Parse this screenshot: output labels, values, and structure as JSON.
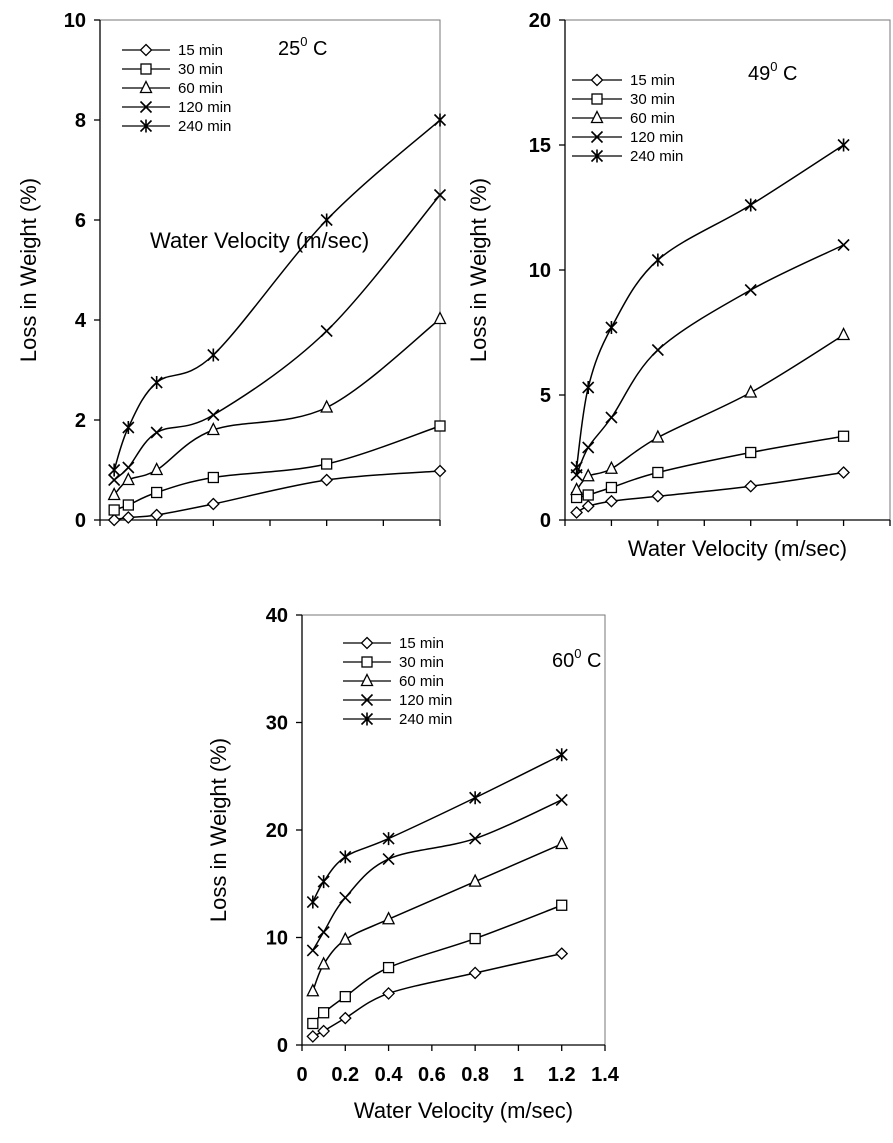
{
  "chart_data": [
    {
      "type": "line",
      "annotation": {
        "base": "25",
        "sup": "0",
        "unit": " C"
      },
      "ylabel": "Loss in Weight (%)",
      "inner_label": "Water Velocity (m/sec)",
      "xlabel": "",
      "xlim": [
        0,
        1.2
      ],
      "ylim": [
        0,
        10
      ],
      "yticks": [
        0,
        2,
        4,
        6,
        8,
        10
      ],
      "x_tick_labels_shown": false,
      "x": [
        0.05,
        0.1,
        0.2,
        0.4,
        0.8,
        1.2
      ],
      "series": [
        {
          "name": "15 min",
          "marker": "diamond",
          "values": [
            0.0,
            0.05,
            0.1,
            0.32,
            0.8,
            0.98
          ]
        },
        {
          "name": "30 min",
          "marker": "square",
          "values": [
            0.2,
            0.3,
            0.55,
            0.85,
            1.12,
            1.88
          ]
        },
        {
          "name": "60 min",
          "marker": "triangle",
          "values": [
            0.5,
            0.8,
            1.0,
            1.8,
            2.25,
            4.02
          ]
        },
        {
          "name": "120 min",
          "marker": "x",
          "values": [
            0.8,
            1.05,
            1.75,
            2.1,
            3.78,
            6.5
          ]
        },
        {
          "name": "240 min",
          "marker": "star",
          "values": [
            1.0,
            1.85,
            2.75,
            3.3,
            6.0,
            8.0
          ]
        }
      ]
    },
    {
      "type": "line",
      "annotation": {
        "base": "49",
        "sup": "0",
        "unit": " C"
      },
      "ylabel": "Loss in Weight (%)",
      "xlabel": "Water Velocity (m/sec)",
      "xlim": [
        0,
        1.4
      ],
      "ylim": [
        0,
        20
      ],
      "yticks": [
        0,
        5,
        10,
        15,
        20
      ],
      "x_tick_labels_shown": false,
      "x": [
        0.05,
        0.1,
        0.2,
        0.4,
        0.8,
        1.2
      ],
      "series": [
        {
          "name": "15 min",
          "marker": "diamond",
          "values": [
            0.3,
            0.55,
            0.75,
            0.95,
            1.35,
            1.9
          ]
        },
        {
          "name": "30 min",
          "marker": "square",
          "values": [
            0.9,
            1.0,
            1.3,
            1.9,
            2.7,
            3.35
          ]
        },
        {
          "name": "60 min",
          "marker": "triangle",
          "values": [
            1.2,
            1.75,
            2.05,
            3.3,
            5.1,
            7.4
          ]
        },
        {
          "name": "120 min",
          "marker": "x",
          "values": [
            1.8,
            2.9,
            4.1,
            6.8,
            9.2,
            11.0
          ]
        },
        {
          "name": "240 min",
          "marker": "star",
          "values": [
            2.1,
            5.3,
            7.7,
            10.4,
            12.6,
            15.0
          ]
        }
      ]
    },
    {
      "type": "line",
      "annotation": {
        "base": "60",
        "sup": "0",
        "unit": " C"
      },
      "ylabel": "Loss in Weight (%)",
      "xlabel": "Water Velocity (m/sec)",
      "xlim": [
        0,
        1.4
      ],
      "ylim": [
        0,
        40
      ],
      "yticks": [
        0,
        10,
        20,
        30,
        40
      ],
      "xticks": [
        0,
        0.2,
        0.4,
        0.6,
        0.8,
        1,
        1.2,
        1.4
      ],
      "xtick_labels": [
        "0",
        "0.2",
        "0.4",
        "0.6",
        "0.8",
        "1",
        "1.2",
        "1.4"
      ],
      "x_tick_labels_shown": true,
      "x": [
        0.05,
        0.1,
        0.2,
        0.4,
        0.8,
        1.2
      ],
      "series": [
        {
          "name": "15 min",
          "marker": "diamond",
          "values": [
            0.8,
            1.3,
            2.5,
            4.8,
            6.7,
            8.5
          ]
        },
        {
          "name": "30 min",
          "marker": "square",
          "values": [
            2.0,
            3.0,
            4.5,
            7.2,
            9.9,
            13.0
          ]
        },
        {
          "name": "60 min",
          "marker": "triangle",
          "values": [
            5.0,
            7.5,
            9.8,
            11.7,
            15.2,
            18.7
          ]
        },
        {
          "name": "120 min",
          "marker": "x",
          "values": [
            8.8,
            10.5,
            13.7,
            17.3,
            19.2,
            22.8
          ]
        },
        {
          "name": "240 min",
          "marker": "star",
          "values": [
            13.3,
            15.2,
            17.5,
            19.2,
            23.0,
            27.0
          ]
        }
      ]
    }
  ]
}
